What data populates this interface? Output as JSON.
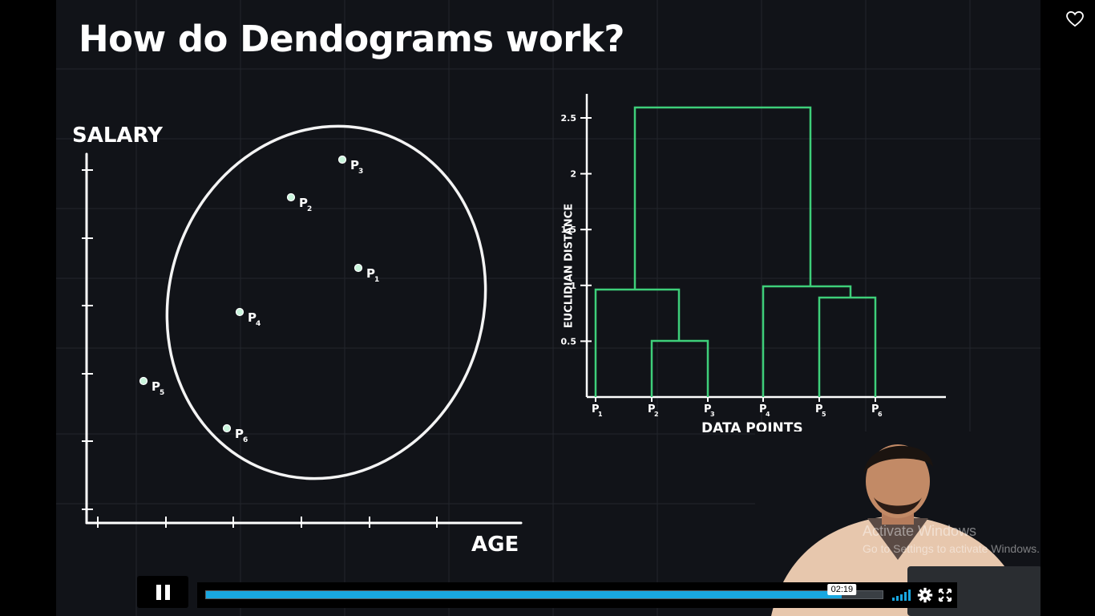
{
  "slide": {
    "title": "How do Dendograms work?",
    "scatter": {
      "y_label": "SALARY",
      "x_label": "AGE",
      "points": [
        {
          "label": "P",
          "sub": "1"
        },
        {
          "label": "P",
          "sub": "2"
        },
        {
          "label": "P",
          "sub": "3"
        },
        {
          "label": "P",
          "sub": "4"
        },
        {
          "label": "P",
          "sub": "5"
        },
        {
          "label": "P",
          "sub": "6"
        }
      ]
    },
    "dendrogram": {
      "y_axis_title": "EUCLIDIAN DISTANCE",
      "x_axis_title": "DATA POINTS",
      "y_ticks": [
        "0.5",
        "1",
        "1.5",
        "2",
        "2.5"
      ],
      "leaves": [
        {
          "label": "P",
          "sub": "1"
        },
        {
          "label": "P",
          "sub": "2"
        },
        {
          "label": "P",
          "sub": "3"
        },
        {
          "label": "P",
          "sub": "4"
        },
        {
          "label": "P",
          "sub": "5"
        },
        {
          "label": "P",
          "sub": "6"
        }
      ],
      "line_color": "#3ecf7a"
    }
  },
  "watermark": {
    "line1": "Activate Windows",
    "line2": "Go to Settings to activate Windows."
  },
  "player": {
    "current_time": "02:19",
    "progress": 0.94,
    "accent_color": "#19a7e0",
    "icons": {
      "play_pause": "pause-icon",
      "volume": "volume-icon",
      "settings": "gear-icon",
      "fullscreen": "fullscreen-icon",
      "favorite": "heart-icon"
    }
  }
}
